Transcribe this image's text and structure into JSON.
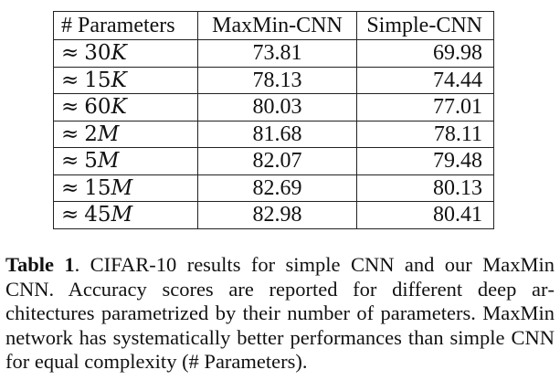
{
  "table": {
    "headers": [
      "# Parameters",
      "MaxMin-CNN",
      "Simple-CNN"
    ],
    "rows": [
      {
        "approx": "≈",
        "number": "30",
        "unit": "K",
        "maxmin": "73.81",
        "simple": "69.98"
      },
      {
        "approx": "≈",
        "number": "15",
        "unit": "K",
        "maxmin": "78.13",
        "simple": "74.44"
      },
      {
        "approx": "≈",
        "number": "60",
        "unit": "K",
        "maxmin": "80.03",
        "simple": "77.01"
      },
      {
        "approx": "≈",
        "number": "2",
        "unit": "M",
        "maxmin": "81.68",
        "simple": "78.11"
      },
      {
        "approx": "≈",
        "number": "5",
        "unit": "M",
        "maxmin": "82.07",
        "simple": "79.48"
      },
      {
        "approx": "≈",
        "number": "15",
        "unit": "M",
        "maxmin": "82.69",
        "simple": "80.13"
      },
      {
        "approx": "≈",
        "number": "45",
        "unit": "M",
        "maxmin": "82.98",
        "simple": "80.41"
      }
    ]
  },
  "caption": {
    "label": "Table 1",
    "text": ". CIFAR-10 results for simple CNN and our MaxMin CNN. Accuracy scores are reported for different deep ar­chitectures parametrized by their number of parameters. MaxMin network has systematically better performances than simple CNN for equal complexity (# Parameters)."
  }
}
